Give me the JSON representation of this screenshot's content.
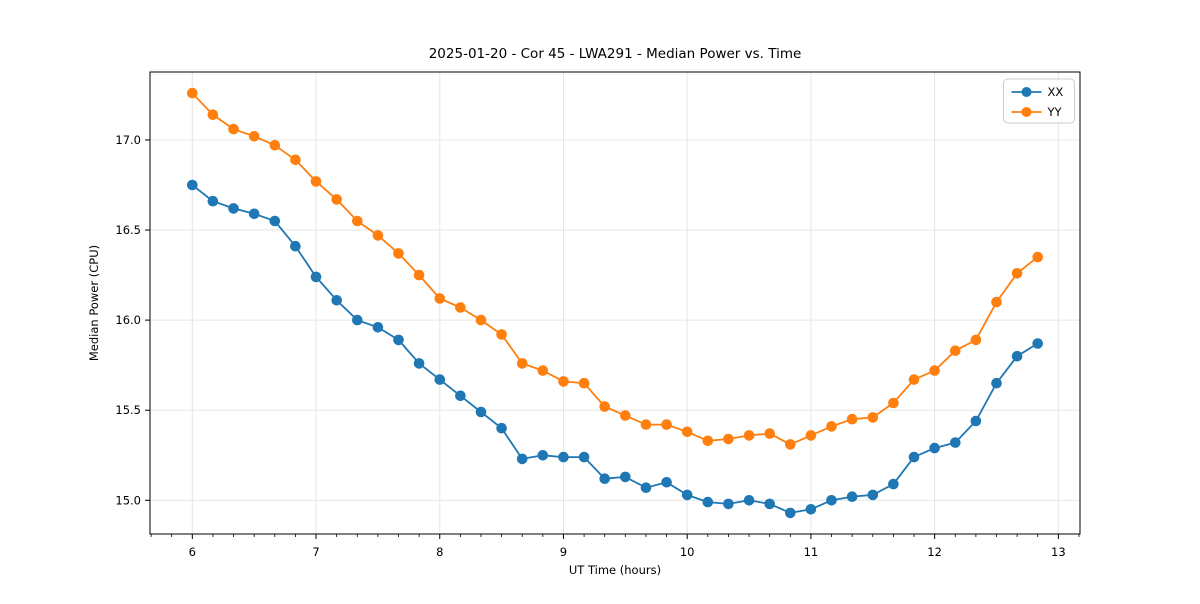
{
  "figure": {
    "background": "#ffffff",
    "spine_color": "#000000",
    "grid_color": "#e6e6e6"
  },
  "chart_data": {
    "type": "line",
    "title": "2025-01-20 - Cor 45 - LWA291 - Median Power vs. Time",
    "xlabel": "UT Time (hours)",
    "ylabel": "Median Power (CPU)",
    "xlim": [
      5.658,
      13.175
    ],
    "ylim": [
      14.813,
      17.377
    ],
    "xticks": [
      6,
      7,
      8,
      9,
      10,
      11,
      12,
      13
    ],
    "yticks": [
      15.0,
      15.5,
      16.0,
      16.5,
      17.0
    ],
    "x_minor_tick_step": 0.166667,
    "grid": true,
    "legend_position": "upper-right",
    "marker": "circle",
    "x": [
      6,
      6.1667,
      6.3333,
      6.5,
      6.6667,
      6.8333,
      7,
      7.1667,
      7.3333,
      7.5,
      7.6667,
      7.8333,
      8,
      8.1667,
      8.3333,
      8.5,
      8.6667,
      8.8333,
      9,
      9.1667,
      9.3333,
      9.5,
      9.6667,
      9.8333,
      10,
      10.1667,
      10.3333,
      10.5,
      10.6667,
      10.8333,
      11,
      11.1667,
      11.3333,
      11.5,
      11.6667,
      11.8333,
      12,
      12.1667,
      12.3333,
      12.5,
      12.6667,
      12.8333
    ],
    "series": [
      {
        "name": "XX",
        "color": "#1f77b4",
        "values": [
          16.75,
          16.66,
          16.62,
          16.59,
          16.55,
          16.41,
          16.24,
          16.11,
          16.0,
          15.96,
          15.89,
          15.76,
          15.67,
          15.58,
          15.49,
          15.4,
          15.23,
          15.25,
          15.24,
          15.24,
          15.12,
          15.13,
          15.07,
          15.1,
          15.03,
          14.99,
          14.98,
          15.0,
          14.98,
          14.93,
          14.95,
          15.0,
          15.02,
          15.03,
          15.09,
          15.24,
          15.29,
          15.32,
          15.44,
          15.65,
          15.8,
          15.87
        ]
      },
      {
        "name": "YY",
        "color": "#ff7f0e",
        "values": [
          17.26,
          17.14,
          17.06,
          17.02,
          16.97,
          16.89,
          16.77,
          16.67,
          16.55,
          16.47,
          16.37,
          16.25,
          16.12,
          16.07,
          16.0,
          15.92,
          15.76,
          15.72,
          15.66,
          15.65,
          15.52,
          15.47,
          15.42,
          15.42,
          15.38,
          15.33,
          15.34,
          15.36,
          15.37,
          15.31,
          15.36,
          15.41,
          15.45,
          15.46,
          15.54,
          15.67,
          15.72,
          15.83,
          15.89,
          16.1,
          16.26,
          16.35
        ]
      }
    ]
  }
}
